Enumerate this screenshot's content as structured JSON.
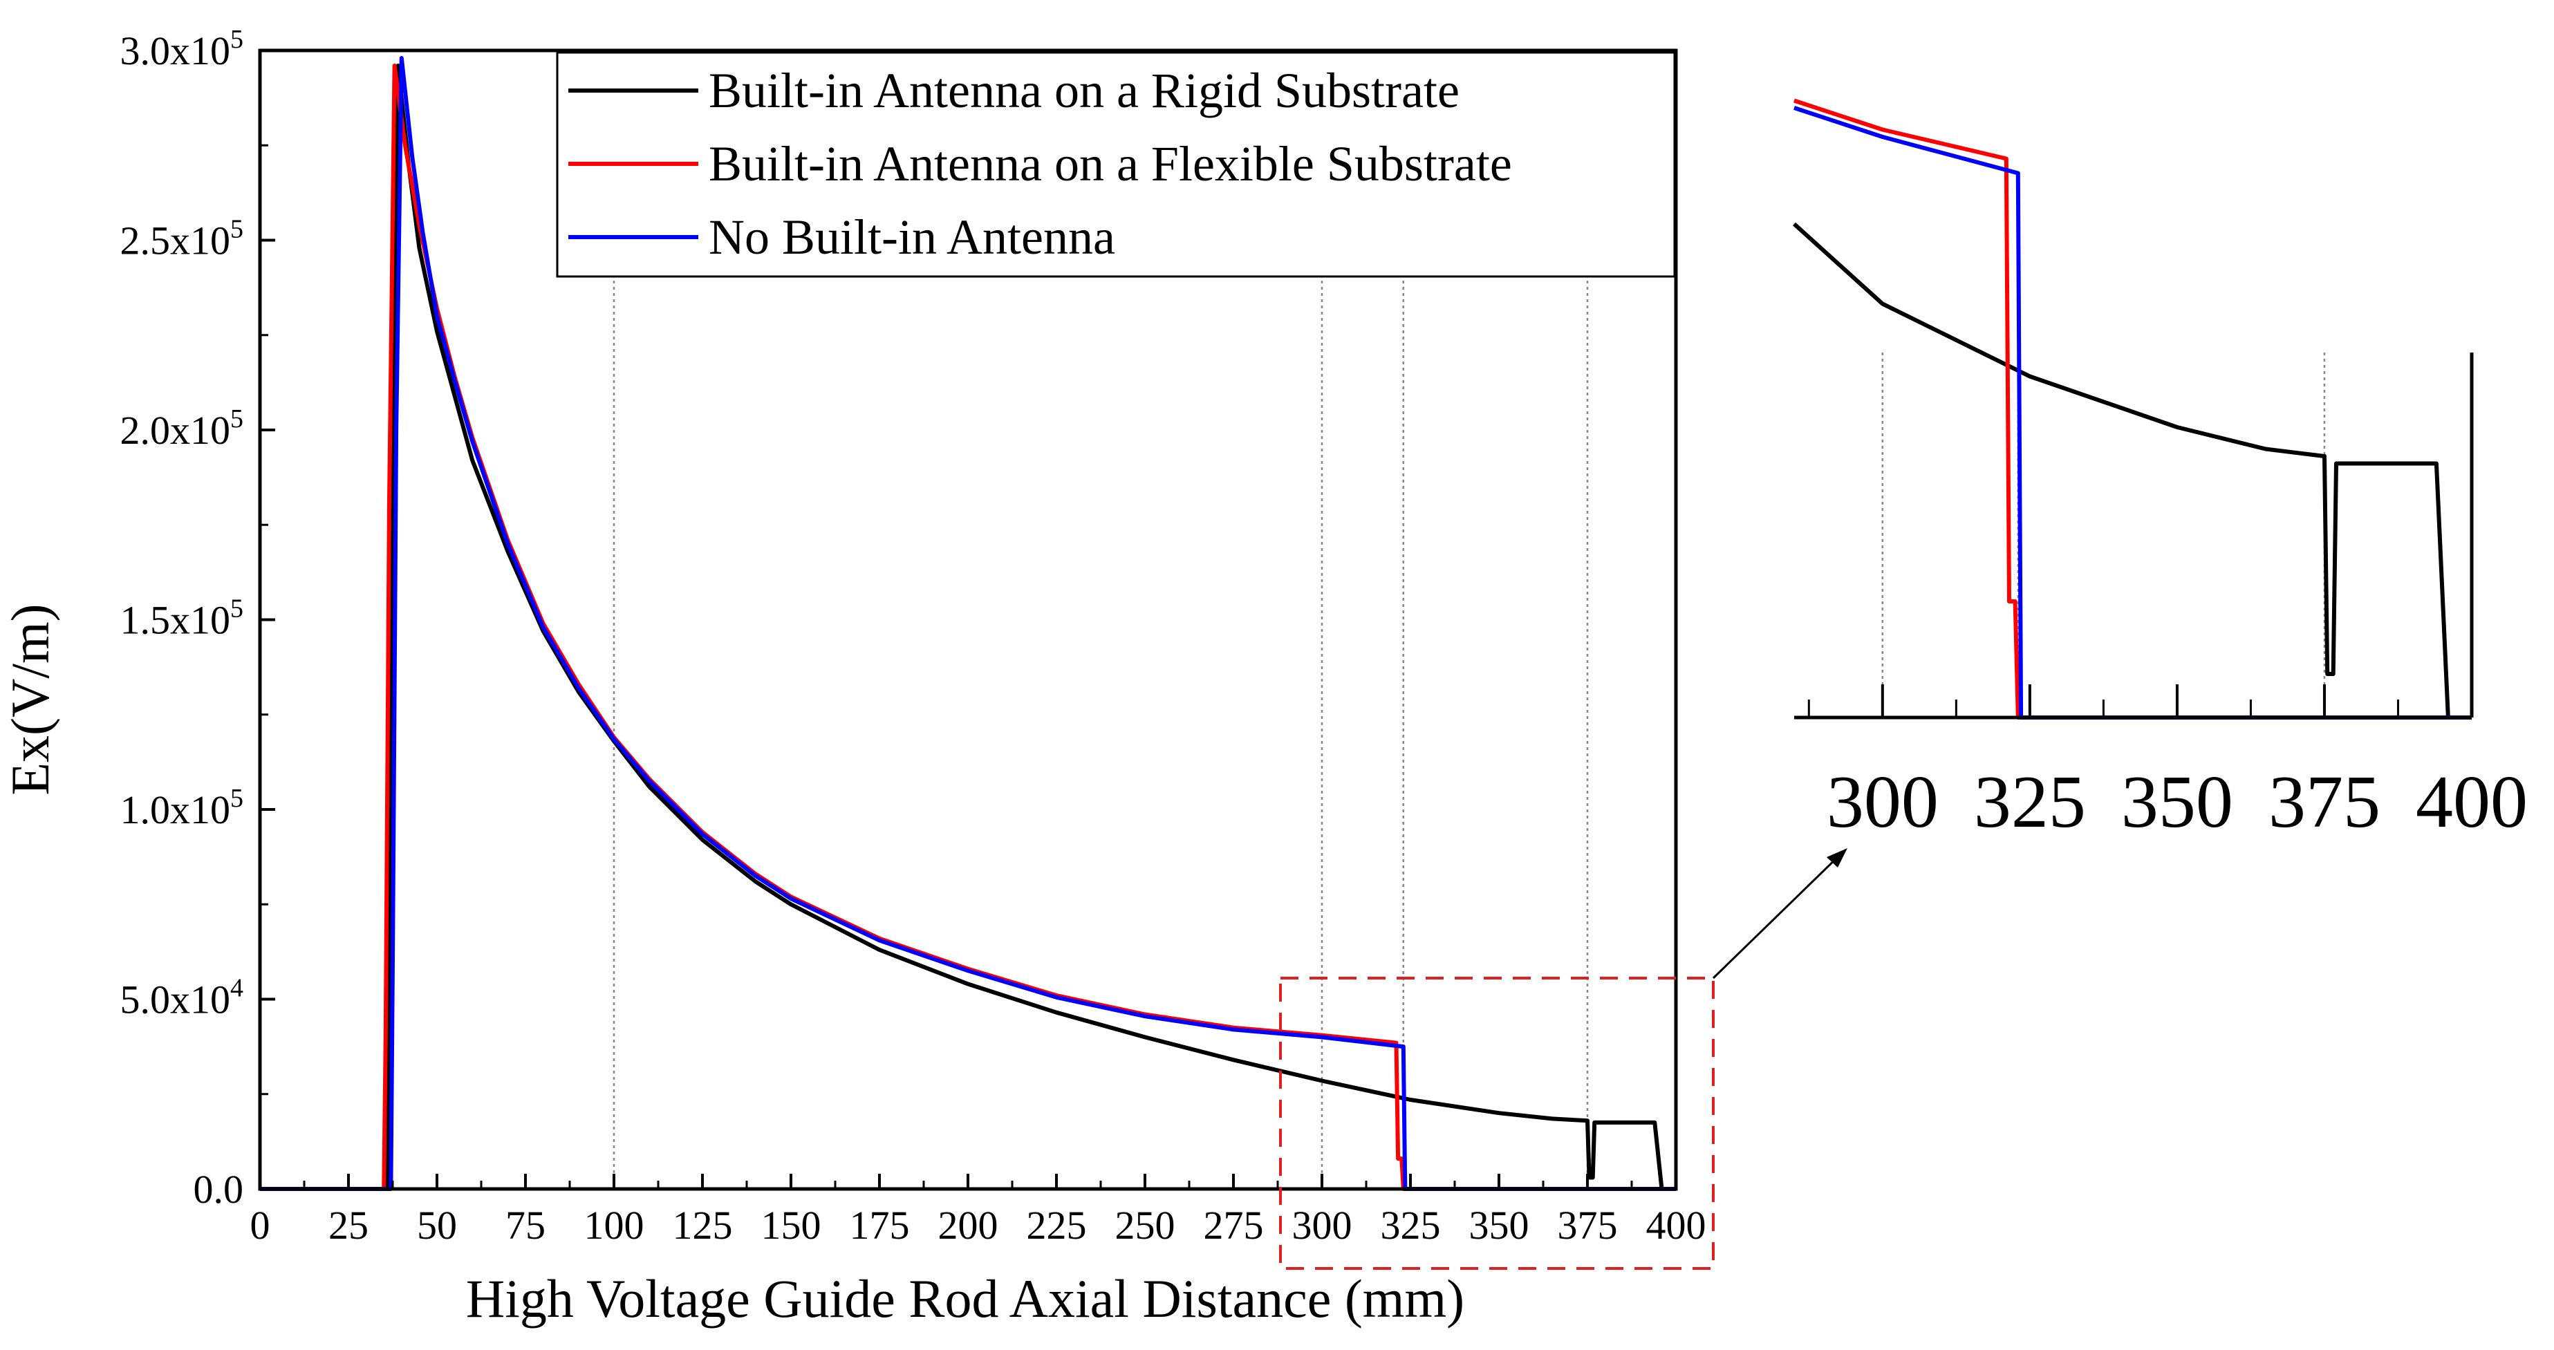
{
  "chart_data": {
    "type": "line",
    "xlabel": "High Voltage Guide Rod Axial Distance (mm)",
    "ylabel": "Ex(V/m)",
    "xlim": [
      0,
      400
    ],
    "ylim": [
      0,
      300000
    ],
    "x_ticks": [
      0,
      25,
      50,
      75,
      100,
      125,
      150,
      175,
      200,
      225,
      250,
      275,
      300,
      325,
      350,
      375,
      400
    ],
    "y_ticks": [
      {
        "value": 0,
        "mantissa": "0.0",
        "exp": ""
      },
      {
        "value": 50000,
        "mantissa": "5.0x10",
        "exp": "4"
      },
      {
        "value": 100000,
        "mantissa": "1.0x10",
        "exp": "5"
      },
      {
        "value": 150000,
        "mantissa": "1.5x10",
        "exp": "5"
      },
      {
        "value": 200000,
        "mantissa": "2.0x10",
        "exp": "5"
      },
      {
        "value": 250000,
        "mantissa": "2.5x10",
        "exp": "5"
      },
      {
        "value": 300000,
        "mantissa": "3.0x10",
        "exp": "5"
      }
    ],
    "gridlines_x": [
      100,
      300,
      323,
      375
    ],
    "legend": {
      "position": "top-right"
    },
    "series": [
      {
        "name": "Built-in Antenna on a Rigid Substrate",
        "color": "#000000",
        "points": [
          [
            0,
            0
          ],
          [
            36,
            0
          ],
          [
            36.5,
            50000
          ],
          [
            37.5,
            190000
          ],
          [
            39,
            296000
          ],
          [
            42,
            270000
          ],
          [
            45,
            248000
          ],
          [
            50,
            226000
          ],
          [
            55,
            209000
          ],
          [
            60,
            192000
          ],
          [
            70,
            168000
          ],
          [
            80,
            147000
          ],
          [
            90,
            131000
          ],
          [
            100,
            118000
          ],
          [
            110,
            106000
          ],
          [
            125,
            92000
          ],
          [
            140,
            81000
          ],
          [
            150,
            75000
          ],
          [
            175,
            63000
          ],
          [
            200,
            54000
          ],
          [
            225,
            46500
          ],
          [
            250,
            40000
          ],
          [
            275,
            34000
          ],
          [
            300,
            28500
          ],
          [
            325,
            23500
          ],
          [
            350,
            20000
          ],
          [
            365,
            18500
          ],
          [
            375,
            18000
          ],
          [
            375.5,
            3000
          ],
          [
            376.5,
            3000
          ],
          [
            377,
            17500
          ],
          [
            394,
            17500
          ],
          [
            396,
            0
          ],
          [
            400,
            0
          ]
        ]
      },
      {
        "name": "Built-in Antenna on a Flexible Substrate",
        "color": "#ff0000",
        "points": [
          [
            0,
            0
          ],
          [
            35,
            0
          ],
          [
            35.5,
            40000
          ],
          [
            36.5,
            180000
          ],
          [
            38,
            296000
          ],
          [
            41,
            275000
          ],
          [
            45,
            254000
          ],
          [
            50,
            232000
          ],
          [
            55,
            214000
          ],
          [
            60,
            198000
          ],
          [
            70,
            171000
          ],
          [
            80,
            149000
          ],
          [
            90,
            133000
          ],
          [
            100,
            119000
          ],
          [
            110,
            108000
          ],
          [
            125,
            94000
          ],
          [
            140,
            83000
          ],
          [
            150,
            77000
          ],
          [
            175,
            66000
          ],
          [
            200,
            58000
          ],
          [
            225,
            51000
          ],
          [
            250,
            46000
          ],
          [
            275,
            42500
          ],
          [
            300,
            40500
          ],
          [
            321,
            38500
          ],
          [
            321.5,
            8000
          ],
          [
            322.5,
            8000
          ],
          [
            323,
            0
          ],
          [
            400,
            0
          ]
        ]
      },
      {
        "name": "No Built-in Antenna",
        "color": "#0000ff",
        "points": [
          [
            0,
            0
          ],
          [
            37,
            0
          ],
          [
            37.5,
            60000
          ],
          [
            38.5,
            200000
          ],
          [
            40,
            298000
          ],
          [
            43,
            272000
          ],
          [
            46,
            252000
          ],
          [
            50,
            230000
          ],
          [
            55,
            213000
          ],
          [
            60,
            197000
          ],
          [
            70,
            170000
          ],
          [
            80,
            148000
          ],
          [
            90,
            132000
          ],
          [
            100,
            118500
          ],
          [
            110,
            107500
          ],
          [
            125,
            93500
          ],
          [
            140,
            82500
          ],
          [
            150,
            76500
          ],
          [
            175,
            65500
          ],
          [
            200,
            57500
          ],
          [
            225,
            50500
          ],
          [
            250,
            45500
          ],
          [
            275,
            42000
          ],
          [
            300,
            40000
          ],
          [
            323,
            37500
          ],
          [
            323.5,
            0
          ],
          [
            400,
            0
          ]
        ]
      }
    ],
    "inset": {
      "xlim": [
        285,
        400
      ],
      "x_ticks": [
        300,
        325,
        350,
        375,
        400
      ],
      "gridlines_x": [
        300,
        323,
        375
      ],
      "callout": "zoomed view of 290–400 mm"
    }
  }
}
